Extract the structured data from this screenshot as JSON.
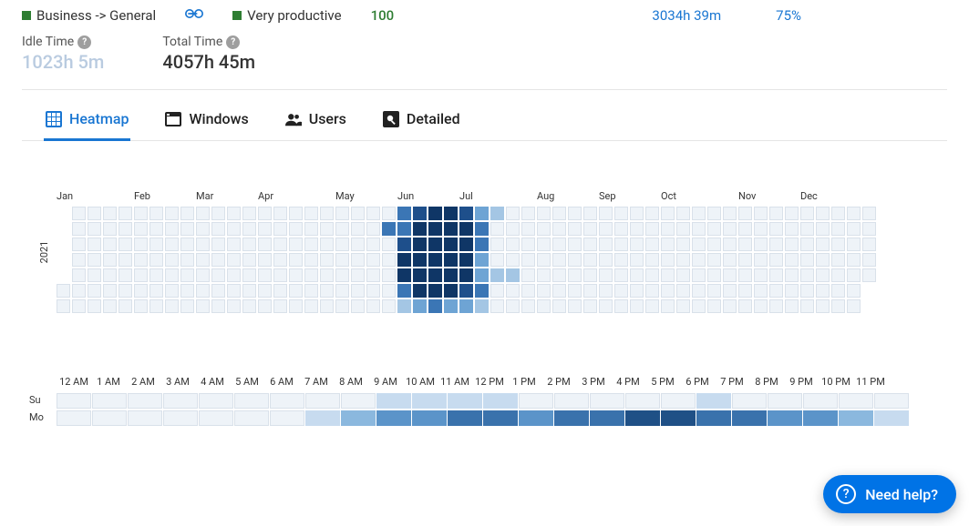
{
  "top": {
    "category": "Business -> General",
    "productivity_label": "Very productive",
    "score": "100",
    "time": "3034h 39m",
    "pct": "75%"
  },
  "metrics": {
    "idle_label": "Idle Time",
    "idle_value": "1023h 5m",
    "total_label": "Total Time",
    "total_value": "4057h 45m"
  },
  "tabs": [
    {
      "id": "heatmap",
      "label": "Heatmap",
      "active": true
    },
    {
      "id": "windows",
      "label": "Windows",
      "active": false
    },
    {
      "id": "users",
      "label": "Users",
      "active": false
    },
    {
      "id": "detailed",
      "label": "Detailed",
      "active": false
    }
  ],
  "year_heatmap": {
    "type": "heatmap",
    "year": "2021",
    "months": [
      "Jan",
      "Feb",
      "Mar",
      "Apr",
      "May",
      "Jun",
      "Jul",
      "Aug",
      "Sep",
      "Oct",
      "Nov",
      "Dec"
    ],
    "month_week_starts": [
      0,
      5,
      9,
      13,
      18,
      22,
      26,
      31,
      35,
      39,
      44,
      48
    ],
    "rows": 7,
    "weeks": 53,
    "first_day_col0_blank_rows": 5,
    "colors": {
      "empty": "#eef3f8",
      "border": "#d9e1ea",
      "l1": "#a4c6e4",
      "l2": "#6ea4d4",
      "l3": "#3b76b5",
      "l4": "#1e4f8b",
      "l5": "#0f3666"
    },
    "cells": {
      "21": [
        0,
        3,
        0,
        0,
        0,
        0,
        0
      ],
      "22": [
        3,
        3,
        4,
        5,
        5,
        3,
        1
      ],
      "23": [
        4,
        5,
        5,
        5,
        5,
        5,
        2
      ],
      "24": [
        5,
        5,
        5,
        5,
        5,
        5,
        3
      ],
      "25": [
        5,
        5,
        5,
        5,
        5,
        5,
        2
      ],
      "26": [
        4,
        5,
        5,
        5,
        5,
        4,
        2
      ],
      "27": [
        2,
        3,
        3,
        2,
        2,
        3,
        1
      ],
      "28": [
        1,
        0,
        0,
        0,
        1,
        0,
        0
      ],
      "29": [
        0,
        0,
        0,
        0,
        1,
        0,
        0
      ]
    }
  },
  "hour_heatmap": {
    "type": "heatmap",
    "hours": [
      "12 AM",
      "1 AM",
      "2 AM",
      "3 AM",
      "4 AM",
      "5 AM",
      "6 AM",
      "7 AM",
      "8 AM",
      "9 AM",
      "10 AM",
      "11 AM",
      "12 PM",
      "1 PM",
      "2 PM",
      "3 PM",
      "4 PM",
      "5 PM",
      "6 PM",
      "7 PM",
      "8 PM",
      "9 PM",
      "10 PM",
      "11 PM"
    ],
    "days": [
      "Su",
      "Mo",
      "Tu",
      "We",
      "Th",
      "Fr",
      "Sa"
    ],
    "visible_days": 2,
    "colors": {
      "empty": "#eef3f8",
      "l1": "#c7dbef",
      "l2": "#8bb8de",
      "l3": "#5b94c9",
      "l4": "#3a72ac",
      "l5": "#1f5086"
    },
    "rows": {
      "Su": [
        0,
        0,
        0,
        0,
        0,
        0,
        0,
        0,
        0,
        1,
        1,
        1,
        1,
        0,
        0,
        0,
        0,
        0,
        1,
        0,
        0,
        0,
        0,
        0
      ],
      "Mo": [
        0,
        0,
        0,
        0,
        0,
        0,
        0,
        1,
        2,
        3,
        3,
        4,
        4,
        3,
        4,
        4,
        5,
        5,
        4,
        4,
        3,
        3,
        2,
        1
      ]
    }
  },
  "help": {
    "label": "Need help?"
  }
}
